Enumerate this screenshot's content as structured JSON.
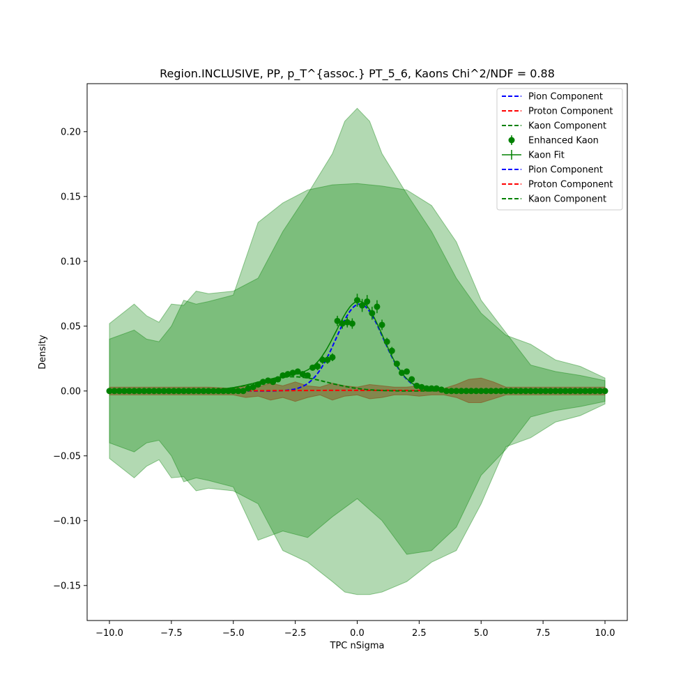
{
  "chart_data": {
    "type": "scatter",
    "title": "Region.INCLUSIVE, PP, p_T^{assoc.} PT_5_6, Kaons Chi^2/NDF = 0.88",
    "xlabel": "TPC nSigma",
    "ylabel": "Density",
    "xlim": [
      -10.9,
      10.9
    ],
    "ylim": [
      -0.177,
      0.237
    ],
    "x_ticks": [
      -10,
      -7.5,
      -5,
      -2.5,
      0,
      2.5,
      5,
      7.5,
      10
    ],
    "x_tick_labels": [
      "−10.0",
      "−7.5",
      "−5.0",
      "−2.5",
      "0.0",
      "2.5",
      "5.0",
      "7.5",
      "10.0"
    ],
    "y_ticks": [
      -0.15,
      -0.1,
      -0.05,
      0.0,
      0.05,
      0.1,
      0.15,
      0.2
    ],
    "y_tick_labels": [
      "−0.15",
      "−0.10",
      "−0.05",
      "0.00",
      "0.05",
      "0.10",
      "0.15",
      "0.20"
    ],
    "grid": false,
    "legend_position": "top-right",
    "legend": [
      {
        "label": "Pion Component",
        "style": "dashed",
        "color": "#0000ff"
      },
      {
        "label": "Proton Component",
        "style": "dashed",
        "color": "#ff0000"
      },
      {
        "label": "Kaon Component",
        "style": "dashed",
        "color": "#008000"
      },
      {
        "label": "Enhanced Kaon",
        "style": "marker-errorbar",
        "color": "#008000"
      },
      {
        "label": "Kaon Fit",
        "style": "line-errorbar",
        "color": "#008000"
      },
      {
        "label": "Pion Component",
        "style": "dashed",
        "color": "#0000ff"
      },
      {
        "label": "Proton Component",
        "style": "dashed",
        "color": "#ff0000"
      },
      {
        "label": "Kaon Component",
        "style": "dashed",
        "color": "#008000"
      }
    ],
    "bands": [
      {
        "color": "#008000",
        "opacity": 0.3,
        "x": [
          -10,
          -9,
          -8.5,
          -8,
          -7.5,
          -7,
          -6.5,
          -6,
          -5,
          -4,
          -3,
          -2,
          -1,
          -0.5,
          0,
          0.5,
          1,
          2,
          3,
          4,
          5,
          6,
          7,
          8,
          9,
          10
        ],
        "upper": [
          0.052,
          0.067,
          0.058,
          0.053,
          0.067,
          0.066,
          0.077,
          0.075,
          0.077,
          0.087,
          0.123,
          0.152,
          0.183,
          0.208,
          0.218,
          0.208,
          0.183,
          0.152,
          0.123,
          0.087,
          0.06,
          0.043,
          0.036,
          0.024,
          0.019,
          0.01
        ],
        "lower": [
          -0.052,
          -0.067,
          -0.058,
          -0.053,
          -0.067,
          -0.066,
          -0.077,
          -0.075,
          -0.077,
          -0.087,
          -0.123,
          -0.132,
          -0.147,
          -0.155,
          -0.157,
          -0.157,
          -0.155,
          -0.147,
          -0.132,
          -0.123,
          -0.087,
          -0.043,
          -0.036,
          -0.024,
          -0.019,
          -0.01
        ]
      },
      {
        "color": "#008000",
        "opacity": 0.3,
        "x": [
          -10,
          -9,
          -8.5,
          -8,
          -7.5,
          -7,
          -6.5,
          -6,
          -5,
          -4,
          -3,
          -2,
          -1,
          0,
          1,
          2,
          3,
          4,
          5,
          6,
          7,
          8,
          9,
          10
        ],
        "upper": [
          0.04,
          0.047,
          0.04,
          0.038,
          0.05,
          0.07,
          0.067,
          0.069,
          0.074,
          0.13,
          0.145,
          0.155,
          0.159,
          0.16,
          0.158,
          0.155,
          0.143,
          0.115,
          0.07,
          0.045,
          0.02,
          0.015,
          0.012,
          0.008
        ],
        "lower": [
          -0.04,
          -0.047,
          -0.04,
          -0.038,
          -0.05,
          -0.07,
          -0.067,
          -0.069,
          -0.074,
          -0.115,
          -0.108,
          -0.113,
          -0.097,
          -0.083,
          -0.1,
          -0.126,
          -0.123,
          -0.105,
          -0.065,
          -0.045,
          -0.02,
          -0.015,
          -0.012,
          -0.008
        ]
      },
      {
        "color": "#8b4513",
        "opacity": 0.45,
        "x": [
          -10,
          -8,
          -6,
          -5,
          -4.5,
          -4,
          -3.5,
          -3,
          -2.5,
          -2,
          -1.5,
          -1,
          -0.5,
          0,
          0.5,
          1,
          1.5,
          2,
          2.5,
          3,
          3.5,
          4,
          4.5,
          5,
          5.5,
          6,
          8,
          10
        ],
        "upper": [
          0.003,
          0.003,
          0.003,
          0.002,
          0.004,
          0.003,
          0.006,
          0.004,
          0.007,
          0.004,
          0.003,
          0.006,
          0.004,
          0.003,
          0.005,
          0.004,
          0.003,
          0.003,
          0.004,
          0.003,
          0.002,
          0.005,
          0.009,
          0.01,
          0.007,
          0.003,
          0.003,
          0.003
        ],
        "lower": [
          -0.003,
          -0.003,
          -0.003,
          -0.003,
          -0.005,
          -0.004,
          -0.007,
          -0.005,
          -0.008,
          -0.005,
          -0.003,
          -0.007,
          -0.004,
          -0.003,
          -0.006,
          -0.005,
          -0.003,
          -0.003,
          -0.004,
          -0.003,
          -0.003,
          -0.005,
          -0.009,
          -0.009,
          -0.006,
          -0.003,
          -0.003,
          -0.003
        ]
      }
    ],
    "series": [
      {
        "name": "Pion Component",
        "kind": "dashed-line",
        "color": "#0000ff",
        "function": "gaussian",
        "amplitude": 0.067,
        "mean": 0.1,
        "sigma": 0.95
      },
      {
        "name": "Proton Component",
        "kind": "dashed-line",
        "color": "#ff0000",
        "function": "gaussian",
        "amplitude": 0.0005,
        "mean": 0.0,
        "sigma": 3.0
      },
      {
        "name": "Kaon Component",
        "kind": "dashed-line",
        "color": "#008000",
        "function": "gaussian",
        "amplitude": 0.011,
        "mean": -2.6,
        "sigma": 1.4
      },
      {
        "name": "Kaon Fit",
        "kind": "solid-line",
        "color": "#008000",
        "function": "sum_of_components"
      },
      {
        "name": "Enhanced Kaon",
        "kind": "points",
        "color": "#008000",
        "x": [
          -4.4,
          -4.2,
          -4.0,
          -3.8,
          -3.6,
          -3.4,
          -3.2,
          -3.0,
          -2.8,
          -2.6,
          -2.4,
          -2.2,
          -2.0,
          -1.8,
          -1.6,
          -1.4,
          -1.2,
          -1.0,
          -0.8,
          -0.6,
          -0.4,
          -0.2,
          0.0,
          0.2,
          0.4,
          0.6,
          0.8,
          1.0,
          1.2,
          1.4,
          1.6,
          1.8,
          2.0,
          2.2,
          2.4,
          2.6,
          2.8,
          3.0,
          3.2,
          3.4
        ],
        "y": [
          0.002,
          0.003,
          0.005,
          0.007,
          0.008,
          0.007,
          0.009,
          0.012,
          0.013,
          0.014,
          0.015,
          0.013,
          0.012,
          0.018,
          0.019,
          0.024,
          0.024,
          0.026,
          0.054,
          0.052,
          0.053,
          0.052,
          0.07,
          0.066,
          0.069,
          0.06,
          0.065,
          0.051,
          0.038,
          0.031,
          0.021,
          0.014,
          0.015,
          0.009,
          0.004,
          0.003,
          0.002,
          0.002,
          0.002,
          0.001
        ],
        "yerr": [
          0.001,
          0.001,
          0.001,
          0.001,
          0.002,
          0.001,
          0.002,
          0.002,
          0.002,
          0.002,
          0.002,
          0.002,
          0.002,
          0.002,
          0.003,
          0.003,
          0.003,
          0.003,
          0.004,
          0.004,
          0.004,
          0.004,
          0.005,
          0.005,
          0.005,
          0.005,
          0.005,
          0.004,
          0.003,
          0.003,
          0.002,
          0.002,
          0.002,
          0.001,
          0.001,
          0.001,
          0.001,
          0.001,
          0.001,
          0.001
        ],
        "flat_x_start": -10.0,
        "flat_x_end": 10.0,
        "flat_x_step": 0.2,
        "flat_y": 0.0
      }
    ]
  }
}
